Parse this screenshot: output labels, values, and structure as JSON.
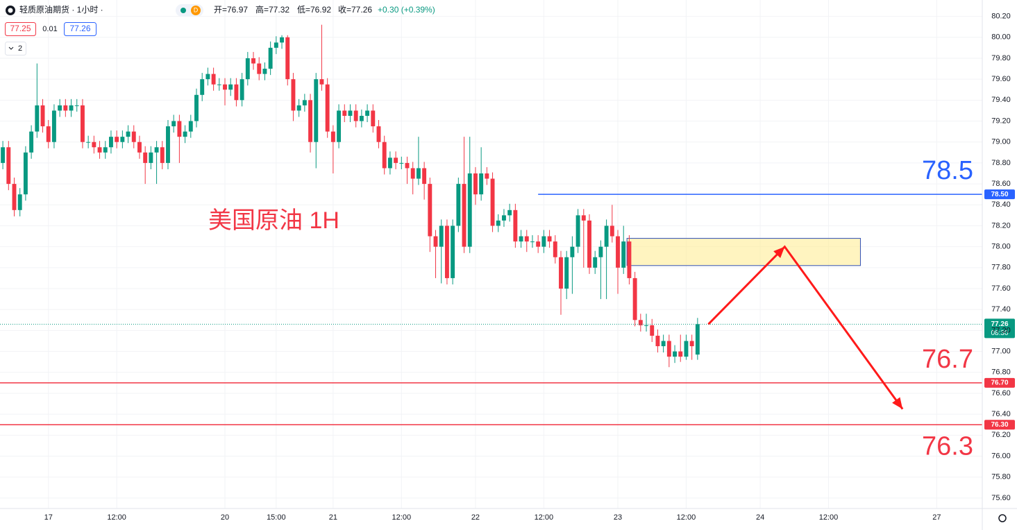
{
  "chart_data": {
    "type": "candlestick",
    "header": {
      "symbol": "轻质原油期货 · 1小时 ·",
      "badge": "D",
      "open": "开=76.97",
      "high": "高=77.32",
      "low": "低=76.92",
      "close": "收=77.26",
      "change": "+0.30 (+0.39%)"
    },
    "quote": {
      "bid": "77.25",
      "spread": "0.01",
      "ask": "77.26",
      "indicators": "2"
    },
    "annotation": "美国原油 1H",
    "up_color": "#089981",
    "down_color": "#f23645",
    "ylim": [
      75.5,
      80.29
    ],
    "yticks": [
      {
        "value": 75.6,
        "label": "75.60"
      },
      {
        "value": 75.8,
        "label": "75.80"
      },
      {
        "value": 76.0,
        "label": "76.00"
      },
      {
        "value": 76.2,
        "label": "76.20"
      },
      {
        "value": 76.4,
        "label": "76.40"
      },
      {
        "value": 76.6,
        "label": "76.60"
      },
      {
        "value": 76.8,
        "label": "76.80"
      },
      {
        "value": 77.0,
        "label": "77.00"
      },
      {
        "value": 77.2,
        "label": "77.20"
      },
      {
        "value": 77.4,
        "label": "77.40"
      },
      {
        "value": 77.6,
        "label": "77.60"
      },
      {
        "value": 77.8,
        "label": "77.80"
      },
      {
        "value": 78.0,
        "label": "78.00"
      },
      {
        "value": 78.2,
        "label": "78.20"
      },
      {
        "value": 78.4,
        "label": "78.40"
      },
      {
        "value": 78.6,
        "label": "78.60"
      },
      {
        "value": 78.8,
        "label": "78.80"
      },
      {
        "value": 79.0,
        "label": "79.00"
      },
      {
        "value": 79.2,
        "label": "79.20"
      },
      {
        "value": 79.4,
        "label": "79.40"
      },
      {
        "value": 79.6,
        "label": "79.60"
      },
      {
        "value": 79.8,
        "label": "79.80"
      },
      {
        "value": 80.0,
        "label": "80.00"
      },
      {
        "value": 80.2,
        "label": "80.20"
      }
    ],
    "xlim": [
      -0.5,
      172
    ],
    "xticks": [
      {
        "value": 8,
        "label": "17"
      },
      {
        "value": 20,
        "label": "12:00"
      },
      {
        "value": 39,
        "label": "20"
      },
      {
        "value": 48,
        "label": "15:00"
      },
      {
        "value": 58,
        "label": "21"
      },
      {
        "value": 70,
        "label": "12:00"
      },
      {
        "value": 83,
        "label": "22"
      },
      {
        "value": 95,
        "label": "12:00"
      },
      {
        "value": 108,
        "label": "23"
      },
      {
        "value": 120,
        "label": "12:00"
      },
      {
        "value": 133,
        "label": "24"
      },
      {
        "value": 145,
        "label": "12:00"
      },
      {
        "value": 164,
        "label": "27"
      }
    ],
    "grid": true,
    "candles": [
      [
        78.8,
        79.01,
        78.74,
        78.95
      ],
      [
        78.95,
        79.01,
        78.54,
        78.6
      ],
      [
        78.6,
        78.66,
        78.29,
        78.35
      ],
      [
        78.35,
        78.56,
        78.29,
        78.5
      ],
      [
        78.5,
        78.96,
        78.44,
        78.9
      ],
      [
        78.9,
        79.16,
        78.84,
        79.1
      ],
      [
        79.1,
        79.75,
        79.04,
        79.35
      ],
      [
        79.35,
        79.41,
        79.09,
        79.15
      ],
      [
        79.15,
        79.21,
        78.94,
        79.0
      ],
      [
        79.0,
        79.36,
        78.94,
        79.3
      ],
      [
        79.3,
        79.41,
        79.24,
        79.35
      ],
      [
        79.35,
        79.41,
        79.24,
        79.3
      ],
      [
        79.3,
        79.41,
        79.24,
        79.35
      ],
      [
        79.35,
        79.41,
        79.29,
        79.35
      ],
      [
        79.35,
        79.41,
        78.94,
        79.0
      ],
      [
        79.0,
        79.06,
        78.94,
        79.0
      ],
      [
        79.0,
        79.06,
        78.89,
        78.95
      ],
      [
        78.95,
        79.01,
        78.84,
        78.9
      ],
      [
        78.9,
        79.01,
        78.84,
        78.95
      ],
      [
        78.95,
        79.11,
        78.89,
        79.05
      ],
      [
        79.05,
        79.11,
        78.94,
        79.0
      ],
      [
        79.0,
        79.11,
        78.94,
        79.05
      ],
      [
        79.05,
        79.16,
        78.99,
        79.1
      ],
      [
        79.1,
        79.16,
        78.94,
        79.0
      ],
      [
        79.0,
        79.06,
        78.84,
        78.9
      ],
      [
        78.9,
        78.96,
        78.6,
        78.8
      ],
      [
        78.8,
        78.96,
        78.74,
        78.9
      ],
      [
        78.9,
        79.01,
        78.6,
        78.95
      ],
      [
        78.95,
        79.01,
        78.74,
        78.8
      ],
      [
        78.8,
        79.21,
        78.74,
        79.15
      ],
      [
        79.15,
        79.26,
        79.09,
        79.2
      ],
      [
        79.2,
        79.26,
        78.8,
        79.05
      ],
      [
        79.05,
        79.16,
        78.99,
        79.1
      ],
      [
        79.1,
        79.26,
        79.04,
        79.2
      ],
      [
        79.2,
        79.51,
        79.14,
        79.45
      ],
      [
        79.45,
        79.66,
        79.39,
        79.6
      ],
      [
        79.6,
        79.71,
        79.54,
        79.65
      ],
      [
        79.65,
        79.71,
        79.49,
        79.55
      ],
      [
        79.55,
        79.61,
        79.49,
        79.55
      ],
      [
        79.55,
        79.61,
        79.35,
        79.5
      ],
      [
        79.5,
        79.61,
        79.44,
        79.55
      ],
      [
        79.55,
        79.61,
        79.34,
        79.4
      ],
      [
        79.4,
        79.66,
        79.34,
        79.6
      ],
      [
        79.6,
        79.86,
        79.54,
        79.8
      ],
      [
        79.8,
        79.86,
        79.69,
        79.75
      ],
      [
        79.75,
        79.81,
        79.59,
        79.65
      ],
      [
        79.65,
        79.76,
        79.59,
        79.7
      ],
      [
        79.7,
        79.96,
        79.64,
        79.9
      ],
      [
        79.9,
        80.01,
        79.84,
        79.95
      ],
      [
        79.95,
        80.02,
        79.89,
        80.0
      ],
      [
        80.0,
        80.02,
        79.54,
        79.6
      ],
      [
        79.6,
        79.66,
        79.2,
        79.3
      ],
      [
        79.3,
        79.41,
        79.24,
        79.35
      ],
      [
        79.35,
        79.46,
        79.29,
        79.4
      ],
      [
        79.4,
        79.46,
        78.9,
        79.0
      ],
      [
        79.0,
        79.66,
        78.75,
        79.6
      ],
      [
        79.6,
        80.12,
        79.49,
        79.55
      ],
      [
        79.55,
        79.61,
        79.04,
        79.1
      ],
      [
        79.1,
        79.16,
        78.7,
        79.0
      ],
      [
        79.0,
        79.36,
        78.94,
        79.3
      ],
      [
        79.3,
        79.36,
        79.19,
        79.25
      ],
      [
        79.25,
        79.36,
        79.19,
        79.3
      ],
      [
        79.3,
        79.36,
        79.14,
        79.2
      ],
      [
        79.2,
        79.31,
        79.14,
        79.25
      ],
      [
        79.25,
        79.36,
        79.19,
        79.3
      ],
      [
        79.3,
        79.36,
        79.09,
        79.15
      ],
      [
        79.15,
        79.21,
        78.94,
        79.0
      ],
      [
        79.0,
        79.06,
        78.69,
        78.75
      ],
      [
        78.75,
        78.91,
        78.69,
        78.85
      ],
      [
        78.85,
        78.91,
        78.74,
        78.8
      ],
      [
        78.8,
        78.86,
        78.74,
        78.8
      ],
      [
        78.8,
        78.86,
        78.6,
        78.75
      ],
      [
        78.75,
        78.81,
        78.5,
        78.65
      ],
      [
        78.65,
        79.05,
        78.59,
        78.75
      ],
      [
        78.75,
        78.81,
        78.45,
        78.6
      ],
      [
        78.6,
        78.66,
        77.95,
        78.1
      ],
      [
        78.1,
        78.16,
        77.7,
        78.0
      ],
      [
        78.0,
        78.26,
        77.65,
        78.2
      ],
      [
        78.2,
        78.26,
        77.64,
        77.7
      ],
      [
        77.7,
        78.26,
        77.64,
        78.2
      ],
      [
        78.2,
        78.66,
        78.14,
        78.6
      ],
      [
        78.6,
        79.05,
        77.94,
        78.0
      ],
      [
        78.0,
        79.05,
        77.94,
        78.7
      ],
      [
        78.7,
        78.76,
        78.4,
        78.5
      ],
      [
        78.5,
        78.95,
        78.44,
        78.7
      ],
      [
        78.7,
        78.76,
        78.59,
        78.65
      ],
      [
        78.65,
        78.71,
        78.14,
        78.2
      ],
      [
        78.2,
        78.31,
        78.14,
        78.25
      ],
      [
        78.25,
        78.36,
        78.19,
        78.3
      ],
      [
        78.3,
        78.41,
        78.24,
        78.35
      ],
      [
        78.35,
        78.41,
        77.99,
        78.05
      ],
      [
        78.05,
        78.16,
        77.99,
        78.1
      ],
      [
        78.1,
        78.16,
        77.95,
        78.05
      ],
      [
        78.05,
        78.11,
        77.99,
        78.05
      ],
      [
        78.05,
        78.11,
        77.94,
        78.0
      ],
      [
        78.0,
        78.16,
        77.94,
        78.1
      ],
      [
        78.1,
        78.16,
        77.99,
        78.05
      ],
      [
        78.05,
        78.11,
        77.84,
        77.9
      ],
      [
        77.9,
        77.96,
        77.35,
        77.6
      ],
      [
        77.6,
        77.96,
        77.5,
        77.9
      ],
      [
        77.9,
        78.1,
        77.55,
        78.0
      ],
      [
        78.0,
        78.36,
        77.94,
        78.3
      ],
      [
        78.3,
        78.36,
        77.8,
        78.25
      ],
      [
        78.25,
        78.31,
        77.74,
        77.8
      ],
      [
        77.8,
        77.96,
        77.74,
        77.9
      ],
      [
        77.9,
        78.06,
        77.5,
        78.0
      ],
      [
        78.0,
        78.26,
        77.5,
        78.2
      ],
      [
        78.2,
        78.4,
        78.04,
        78.1
      ],
      [
        78.1,
        78.16,
        77.55,
        77.8
      ],
      [
        77.8,
        78.2,
        77.74,
        78.05
      ],
      [
        78.05,
        78.11,
        77.64,
        77.7
      ],
      [
        77.7,
        77.76,
        77.24,
        77.3
      ],
      [
        77.3,
        77.36,
        77.19,
        77.25
      ],
      [
        77.25,
        77.36,
        77.19,
        77.25
      ],
      [
        77.25,
        77.31,
        77.09,
        77.15
      ],
      [
        77.15,
        77.21,
        76.99,
        77.05
      ],
      [
        77.05,
        77.16,
        76.99,
        77.1
      ],
      [
        77.1,
        77.16,
        76.85,
        76.95
      ],
      [
        76.95,
        77.06,
        76.89,
        77.0
      ],
      [
        77.0,
        77.16,
        76.9,
        76.95
      ],
      [
        76.95,
        77.16,
        76.92,
        77.1
      ],
      [
        77.1,
        77.16,
        76.92,
        77.05
      ],
      [
        76.97,
        77.32,
        76.92,
        77.26
      ]
    ],
    "last": {
      "value": 77.26,
      "label": "77.26",
      "countdown": "08:30",
      "color": "#089981"
    },
    "levels": [
      {
        "value": 78.5,
        "label": "78.50",
        "color": "#2962ff",
        "from": 94
      },
      {
        "value": 76.7,
        "label": "76.70",
        "color": "#f23645",
        "from": -0.5
      },
      {
        "value": 76.3,
        "label": "76.30",
        "color": "#f23645",
        "from": -0.5
      }
    ],
    "zone": {
      "from": 109.6,
      "to": 150.6,
      "top": 78.08,
      "bottom": 77.82
    },
    "arrow": {
      "x": [
        123.9,
        137.3,
        158.0
      ],
      "y": [
        77.26,
        78.0,
        76.45
      ],
      "color": "#ff1a1a"
    }
  }
}
